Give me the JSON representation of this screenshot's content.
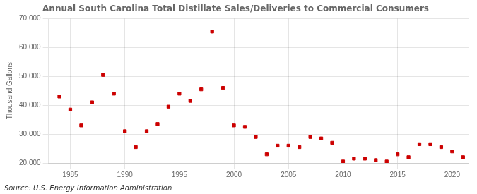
{
  "chart_data": {
    "type": "scatter",
    "title": "Annual South Carolina Total Distillate Sales/Deliveries to Commercial Consumers",
    "ylabel": "Thousand Gallons",
    "annotations": [
      "Source: U.S. Energy Information Administration"
    ],
    "x": [
      1984,
      1985,
      1986,
      1987,
      1988,
      1989,
      1990,
      1991,
      1992,
      1993,
      1994,
      1995,
      1996,
      1997,
      1998,
      1999,
      2000,
      2001,
      2002,
      2003,
      2004,
      2005,
      2006,
      2007,
      2008,
      2009,
      2010,
      2011,
      2012,
      2013,
      2014,
      2015,
      2016,
      2017,
      2018,
      2019,
      2020,
      2021
    ],
    "values": [
      43000,
      38500,
      33000,
      41000,
      50500,
      44000,
      31000,
      25500,
      31000,
      33500,
      39500,
      44000,
      41500,
      45500,
      65500,
      46000,
      33000,
      32500,
      29000,
      23000,
      26000,
      26000,
      25500,
      29000,
      28500,
      27000,
      20500,
      21500,
      21500,
      21000,
      20500,
      23000,
      22000,
      26500,
      26500,
      25500,
      24000,
      22000
    ],
    "color": "#cc0000",
    "marker": "square",
    "xlim": [
      1983,
      2021.5
    ],
    "ylim": [
      20000,
      70000
    ],
    "xticks": [
      1985,
      1990,
      1995,
      2000,
      2005,
      2010,
      2015,
      2020
    ],
    "yticks": [
      {
        "value": 20000,
        "label": "20,000"
      },
      {
        "value": 30000,
        "label": "30,000"
      },
      {
        "value": 40000,
        "label": "40,000"
      },
      {
        "value": 50000,
        "label": "50,000"
      },
      {
        "value": 60000,
        "label": "60,000"
      },
      {
        "value": 70000,
        "label": "70,000"
      }
    ],
    "grid": true
  }
}
